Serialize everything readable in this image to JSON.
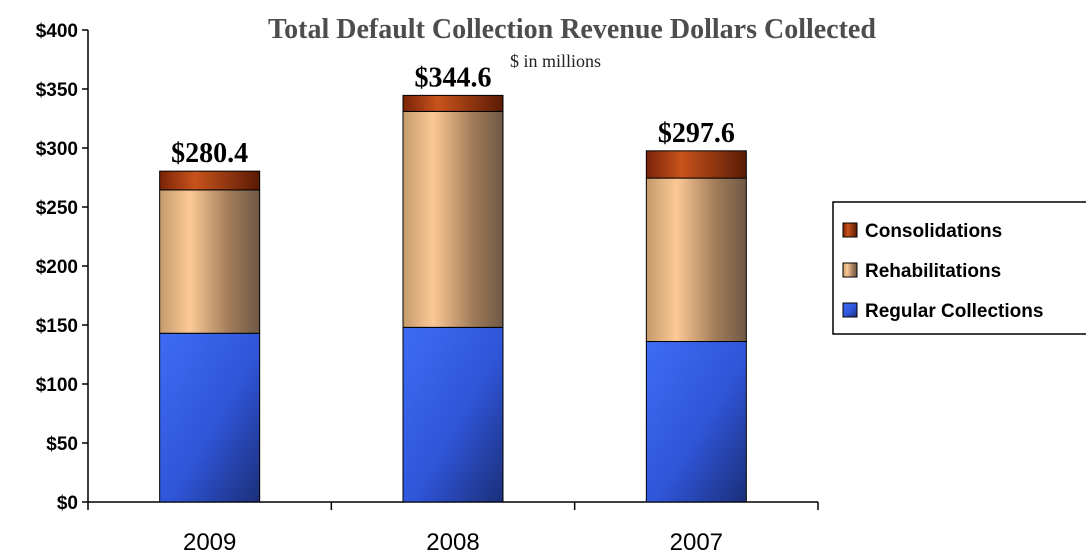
{
  "chart_data": {
    "type": "bar",
    "stacked": true,
    "title": "Total Default Collection Revenue Dollars Collected",
    "subtitle": "$ in millions",
    "categories": [
      "2009",
      "2008",
      "2007"
    ],
    "series": [
      {
        "name": "Regular Collections",
        "values": [
          143,
          148,
          136
        ],
        "color": "#2e54d6"
      },
      {
        "name": "Rehabilitations",
        "values": [
          121.5,
          183,
          138.5
        ],
        "color": "#b58a62"
      },
      {
        "name": "Consolidations",
        "values": [
          15.9,
          13.6,
          23.1
        ],
        "color": "#8a2a08"
      }
    ],
    "totals": [
      "$280.4",
      "$344.6",
      "$297.6"
    ],
    "ylim": [
      0,
      400
    ],
    "yticks": [
      0,
      50,
      100,
      150,
      200,
      250,
      300,
      350,
      400
    ],
    "ytick_labels": [
      "$0",
      "$50",
      "$100",
      "$150",
      "$200",
      "$250",
      "$300",
      "$350",
      "$400"
    ],
    "legend_order": [
      "Consolidations",
      "Rehabilitations",
      "Regular Collections"
    ],
    "legend_position": "right",
    "grid": false
  }
}
